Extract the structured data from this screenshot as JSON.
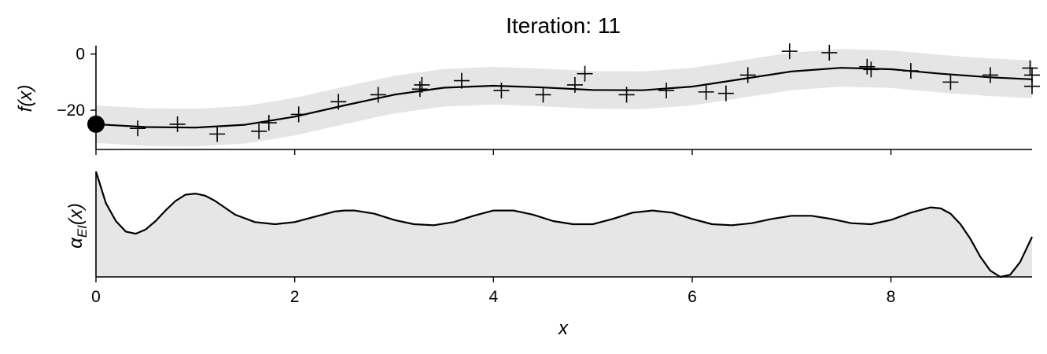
{
  "colors": {
    "line": "#000000",
    "band": "#e5e5e5",
    "area": "#e6e6e6",
    "background": "#ffffff"
  },
  "chart_data": [
    {
      "type": "line",
      "panel": "top",
      "title": "Iteration: 11",
      "ylabel": "f(x)",
      "xlim": [
        0,
        9.42
      ],
      "ylim": [
        -34,
        3
      ],
      "yticks": [
        0,
        -20
      ],
      "ytick_labels": [
        "0",
        "−20"
      ],
      "xticks": [
        0,
        2,
        4,
        6,
        8
      ],
      "grid": false,
      "legend": "none",
      "series": [
        {
          "role": "posterior-mean",
          "x": [
            0,
            0.5,
            1.0,
            1.5,
            2.0,
            2.5,
            3.0,
            3.5,
            4.0,
            4.5,
            5.0,
            5.5,
            6.0,
            6.5,
            7.0,
            7.5,
            8.0,
            8.5,
            9.0,
            9.42
          ],
          "y": [
            -25.0,
            -26.0,
            -26.2,
            -25.2,
            -22.3,
            -18.3,
            -14.5,
            -12.0,
            -11.3,
            -11.9,
            -12.8,
            -12.9,
            -11.6,
            -8.9,
            -6.2,
            -4.9,
            -5.4,
            -7.0,
            -8.3,
            -9.0
          ],
          "band_half_width": 6.7
        },
        {
          "role": "observations",
          "marker": "+",
          "x": [
            0.42,
            0.82,
            1.22,
            1.64,
            1.74,
            2.04,
            2.44,
            2.84,
            3.26,
            3.28,
            3.68,
            4.08,
            4.5,
            4.82,
            4.92,
            5.34,
            5.74,
            6.14,
            6.34,
            6.56,
            6.98,
            7.38,
            7.76,
            7.8,
            8.2,
            8.6,
            9.0,
            9.4,
            9.42,
            9.42
          ],
          "y": [
            -26.5,
            -25.0,
            -28.5,
            -27.5,
            -24.5,
            -21.5,
            -17.0,
            -14.5,
            -12.5,
            -11.0,
            -9.5,
            -13.0,
            -14.5,
            -11.0,
            -7.0,
            -14.5,
            -13.0,
            -13.5,
            -14.0,
            -7.5,
            1.0,
            0.5,
            -4.5,
            -5.5,
            -6.0,
            -10.0,
            -7.5,
            -5.0,
            -7.5,
            -11.5
          ]
        },
        {
          "role": "current-point",
          "marker": "filled-circle",
          "x": [
            0
          ],
          "y": [
            -25.0
          ]
        }
      ]
    },
    {
      "type": "area",
      "panel": "bottom",
      "ylabel": "α_EI(x)",
      "xlabel": "x",
      "xlim": [
        0,
        9.42
      ],
      "ylim": [
        0,
        1
      ],
      "xticks": [
        0,
        2,
        4,
        6,
        8
      ],
      "xtick_labels": [
        "0",
        "2",
        "4",
        "6",
        "8"
      ],
      "grid": false,
      "legend": "none",
      "series": [
        {
          "role": "acquisition",
          "x": [
            0,
            0.1,
            0.2,
            0.3,
            0.4,
            0.5,
            0.6,
            0.7,
            0.8,
            0.9,
            1.0,
            1.1,
            1.2,
            1.4,
            1.6,
            1.8,
            2.0,
            2.2,
            2.4,
            2.5,
            2.6,
            2.8,
            3.0,
            3.2,
            3.4,
            3.6,
            3.8,
            4.0,
            4.2,
            4.4,
            4.6,
            4.8,
            5.0,
            5.2,
            5.4,
            5.6,
            5.8,
            6.0,
            6.2,
            6.4,
            6.6,
            6.8,
            7.0,
            7.2,
            7.4,
            7.6,
            7.8,
            8.0,
            8.2,
            8.4,
            8.5,
            8.6,
            8.7,
            8.8,
            8.9,
            9.0,
            9.1,
            9.2,
            9.3,
            9.42
          ],
          "y": [
            1.0,
            0.7,
            0.53,
            0.43,
            0.41,
            0.45,
            0.53,
            0.63,
            0.72,
            0.78,
            0.79,
            0.77,
            0.72,
            0.59,
            0.52,
            0.5,
            0.52,
            0.57,
            0.62,
            0.63,
            0.63,
            0.6,
            0.54,
            0.5,
            0.49,
            0.52,
            0.58,
            0.63,
            0.63,
            0.59,
            0.53,
            0.5,
            0.5,
            0.55,
            0.61,
            0.63,
            0.61,
            0.55,
            0.5,
            0.49,
            0.51,
            0.55,
            0.58,
            0.58,
            0.55,
            0.51,
            0.5,
            0.54,
            0.61,
            0.66,
            0.65,
            0.6,
            0.5,
            0.36,
            0.19,
            0.06,
            0.0,
            0.02,
            0.14,
            0.38
          ]
        }
      ]
    }
  ]
}
